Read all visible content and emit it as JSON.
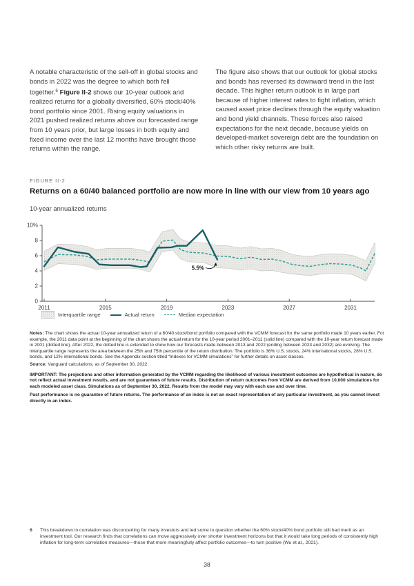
{
  "intro": {
    "col1": {
      "part1": "A notable characteristic of the sell-off in global stocks and bonds in 2022 was the degree to which both fell together.",
      "footnote_ref": "6",
      "bold": "Figure II-2",
      "part2": "shows our 10-year outlook and realized returns for a globally diversified, 60% stock/40% bond portfolio since 2001. Rising equity valuations in 2021 pushed realized returns above our forecasted range from 10 years prior, but large losses in both equity and fixed income over the last 12 months have brought those returns within the range."
    },
    "col2": "The figure also shows that our outlook for global stocks and bonds has reversed its downward trend in the last decade. This higher return outlook is in large part because of higher interest rates to fight inflation, which caused asset price declines through the equity valuation and bond yield channels. These forces also raised expectations for the next decade, because yields on developed-market sovereign debt are the foundation on which other risky returns are built."
  },
  "figure": {
    "label": "FIGURE II-2",
    "title": "Returns on a 60/40 balanced portfolio are now more in line with our view from 10 years ago",
    "subtitle": "10-year annualized returns"
  },
  "legend": [
    {
      "label": "Interquartile range"
    },
    {
      "label": "Actual return"
    },
    {
      "label": "Median expectation"
    }
  ],
  "notes": {
    "label": "Notes:",
    "text": "The chart shows the actual 10-year annualized return of a 60/40 stock/bond portfolio compared with the VCMM forecast for the same portfolio made 10 years earlier. For example, the 2011 data point at the beginning of the chart shows the actual return for the 10-year period 2001–2011 (solid line) compared with the 10-year return forecast made in 2001 (dotted line). After 2022, the dotted line is extended to show how our forecasts made between 2013 and 2022 (ending between 2023 and 2032) are evolving. The interquartile range represents the area between the 25th and 75th percentile of the return distribution. The portfolio is 36% U.S. stocks, 24% international stocks, 28% U.S. bonds, and 12% international bonds. See the Appendix section titled “Indexes for VCMM simulations” for further details on asset classes."
  },
  "source": {
    "label": "Source:",
    "text": "Vanguard calculations, as of September 30, 2022."
  },
  "important": "IMPORTANT: The projections and other information generated by the VCMM regarding the likelihood of various investment outcomes are hypothetical in nature, do not reflect actual investment results, and are not guarantees of future results. Distribution of return outcomes from VCMM are derived from 10,000 simulations for each modeled asset class. Simulations as of September 30, 2022. Results from the model may vary with each use and over time.",
  "past_performance": "Past performance is no guarantee of future returns. The performance of an index is not an exact representation of any particular investment, as you cannot invest directly in an index.",
  "footnote": {
    "number": "6",
    "text": "This breakdown in correlation was disconcerting for many investors and led some to question whether the 60% stock/40% bond portfolio still had merit as an investment tool. Our research finds that correlations can move aggressively over shorter investment horizons but that it would take long periods of consistently high inflation for long-term correlation measures—those that more meaningfully affect portfolio outcomes—to turn positive (Wu et al., 2021).",
    "page_number": "38"
  },
  "colors": {
    "actual": "#175f69",
    "median": "#2aa093",
    "band_fill": "#ebebe8",
    "band_dot": "#cfcfcc",
    "band_edge": "#c6c6c4",
    "axis": "#4a4a4a",
    "tick_label": "#3a3a3a",
    "annotation": "#111111"
  },
  "chart_data": {
    "type": "line",
    "title": "Returns on a 60/40 balanced portfolio are now more in line with our view from 10 years ago",
    "ylabel": "10-year annualized returns (%)",
    "xlabel": "",
    "ylim": [
      0,
      10
    ],
    "grid": false,
    "legend_position": "bottom",
    "x_start": 2011,
    "x_ticks": [
      {
        "v": 2011,
        "label": "2011"
      },
      {
        "v": 2015,
        "label": "2015"
      },
      {
        "v": 2019,
        "label": "2019"
      },
      {
        "v": 2023,
        "label": "2023"
      },
      {
        "v": 2027,
        "label": "2027"
      },
      {
        "v": 2031,
        "label": "2031"
      }
    ],
    "y_ticks": [
      {
        "v": 0,
        "label": "0"
      },
      {
        "v": 2,
        "label": "2"
      },
      {
        "v": 4,
        "label": "4"
      },
      {
        "v": 6,
        "label": "6"
      },
      {
        "v": 8,
        "label": "8"
      },
      {
        "v": 10,
        "label": "10%"
      }
    ],
    "series": [
      {
        "name": "Actual return",
        "style": "solid",
        "points": [
          [
            2011,
            4.6
          ],
          [
            2011.9,
            7.1
          ],
          [
            2013,
            6.5
          ],
          [
            2013.9,
            6.25
          ],
          [
            2014.6,
            4.85
          ],
          [
            2015.4,
            4.75
          ],
          [
            2016.6,
            4.75
          ],
          [
            2017.3,
            4.5
          ],
          [
            2017.7,
            4.6
          ],
          [
            2018.4,
            7.05
          ],
          [
            2019.3,
            7.1
          ],
          [
            2019.7,
            7.3
          ],
          [
            2020.3,
            7.3
          ],
          [
            2021.35,
            9.35
          ],
          [
            2022.3,
            5.5
          ]
        ]
      },
      {
        "name": "Median expectation",
        "style": "dashed",
        "points": [
          [
            2011,
            5.2
          ],
          [
            2011.9,
            6.15
          ],
          [
            2013,
            6.1
          ],
          [
            2013.8,
            5.9
          ],
          [
            2014.4,
            5.45
          ],
          [
            2015.1,
            5.55
          ],
          [
            2016.7,
            5.55
          ],
          [
            2017.3,
            5.4
          ],
          [
            2017.9,
            5.15
          ],
          [
            2018.7,
            7.9
          ],
          [
            2019.4,
            8.05
          ],
          [
            2019.9,
            6.8
          ],
          [
            2020.4,
            6.45
          ],
          [
            2021.4,
            6.35
          ],
          [
            2022.3,
            5.95
          ],
          [
            2023,
            5.9
          ],
          [
            2023.8,
            5.6
          ],
          [
            2024.5,
            5.8
          ],
          [
            2025.2,
            5.5
          ],
          [
            2025.9,
            5.55
          ],
          [
            2026.5,
            5.3
          ],
          [
            2027.2,
            4.85
          ],
          [
            2027.9,
            4.65
          ],
          [
            2028.4,
            4.6
          ],
          [
            2029.1,
            4.85
          ],
          [
            2029.7,
            4.95
          ],
          [
            2030.4,
            4.9
          ],
          [
            2031.1,
            4.75
          ],
          [
            2031.7,
            4.35
          ],
          [
            2032,
            4.0
          ],
          [
            2032.6,
            6.35
          ]
        ]
      }
    ],
    "band": {
      "name": "Interquartile range",
      "x": [
        2011,
        2011.9,
        2013,
        2013.8,
        2014.4,
        2015.1,
        2016.7,
        2017.3,
        2017.9,
        2018.7,
        2019.4,
        2019.9,
        2020.4,
        2021.4,
        2022.3,
        2023,
        2023.8,
        2024.5,
        2025.2,
        2025.9,
        2026.5,
        2027.2,
        2027.9,
        2028.4,
        2029.1,
        2029.7,
        2030.4,
        2031.1,
        2031.7,
        2032,
        2032.6
      ],
      "upper": [
        6.6,
        7.5,
        7.45,
        7.2,
        6.8,
        6.95,
        6.95,
        6.8,
        6.5,
        9.15,
        9.45,
        8.2,
        7.8,
        7.7,
        7.35,
        7.3,
        7.0,
        7.2,
        6.9,
        6.95,
        6.7,
        6.15,
        5.95,
        5.9,
        6.15,
        6.25,
        6.2,
        6.05,
        5.6,
        5.35,
        7.75
      ],
      "lower": [
        4.05,
        4.95,
        4.85,
        4.6,
        4.2,
        4.35,
        4.35,
        4.2,
        3.85,
        6.5,
        6.75,
        5.6,
        5.2,
        5.1,
        4.4,
        4.35,
        4.1,
        4.25,
        4.0,
        4.05,
        3.8,
        3.6,
        3.45,
        3.4,
        3.6,
        3.7,
        3.65,
        3.55,
        3.0,
        2.65,
        5.1
      ]
    },
    "annotation": {
      "x": 2022.3,
      "y": 5.5,
      "label": "5.5%"
    }
  }
}
